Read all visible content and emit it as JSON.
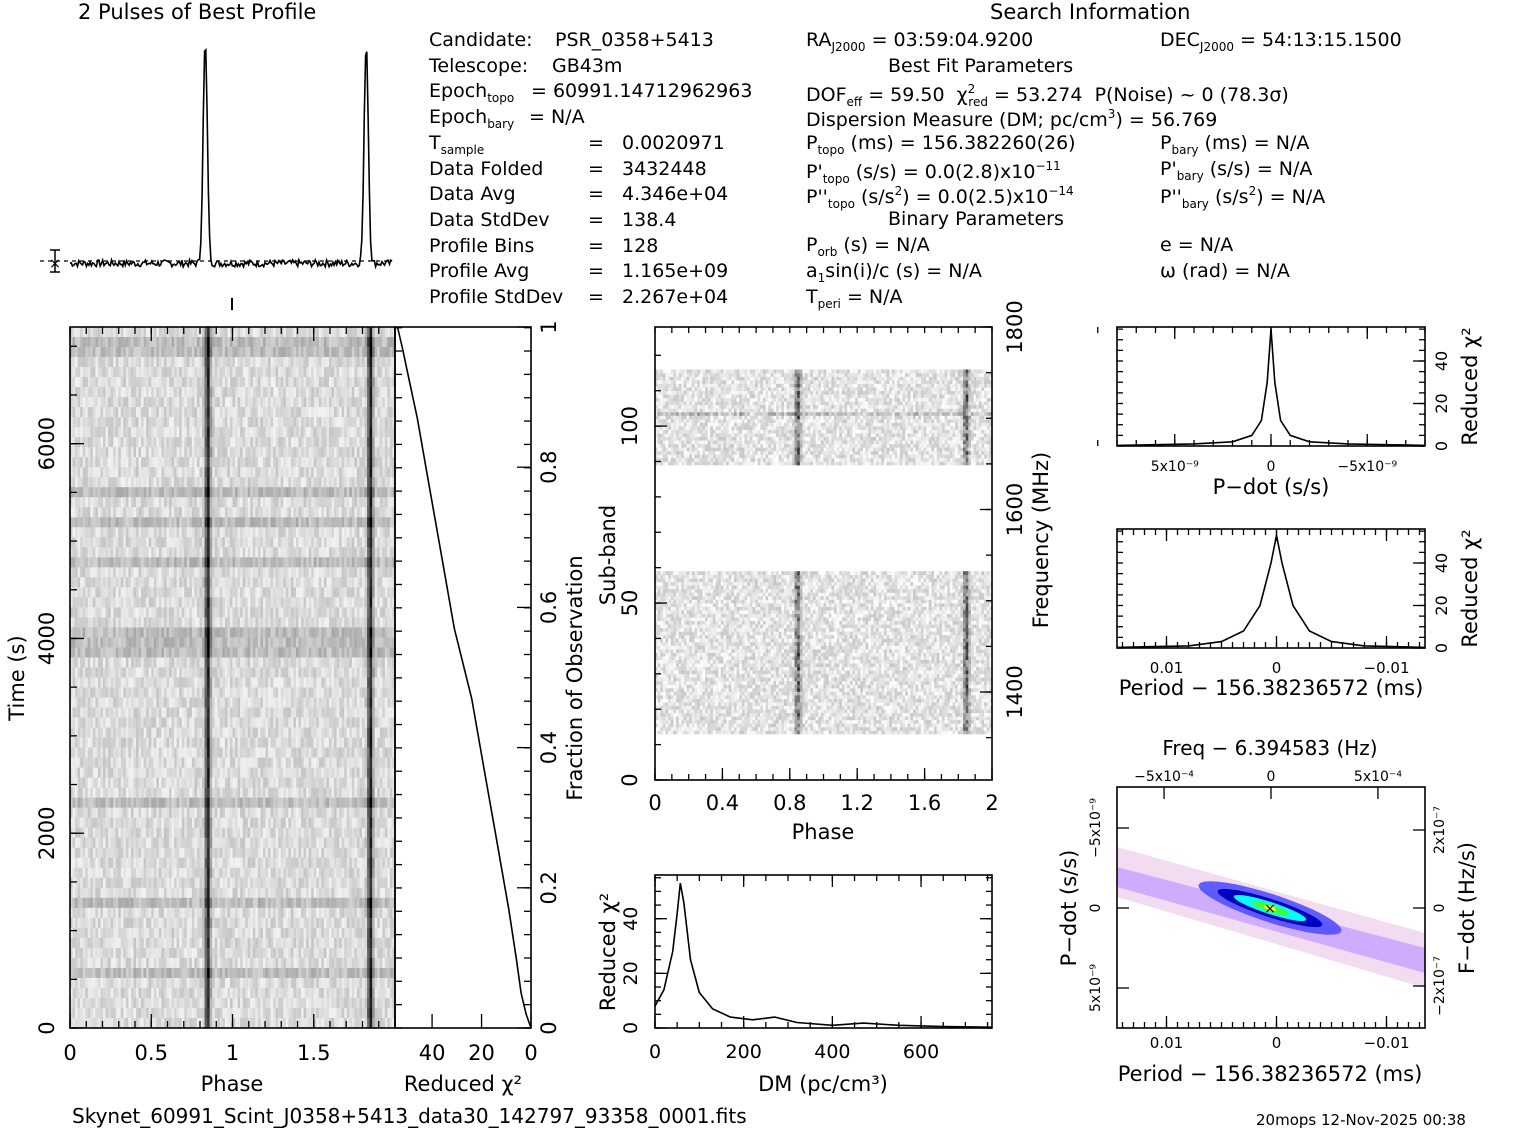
{
  "titles": {
    "profile": "2 Pulses of Best Profile",
    "search_info": "Search Information",
    "best_fit": "Best Fit Parameters",
    "binary": "Binary Parameters"
  },
  "info_left": [
    {
      "label": "Candidate:",
      "value": "PSR_0358+5413"
    },
    {
      "label": "Telescope:",
      "value": "GB43m"
    },
    {
      "label": "Epoch",
      "sub": "topo",
      "value": "= 60991.14712962963"
    },
    {
      "label": "Epoch",
      "sub": "bary",
      "value": "= N/A"
    },
    {
      "label": "T",
      "sub": "sample",
      "value": "=   0.0020971"
    },
    {
      "label": "Data Folded",
      "value": "=   3432448"
    },
    {
      "label": "Data Avg",
      "value": "=   4.346e+04"
    },
    {
      "label": "Data StdDev",
      "value": "=   138.4"
    },
    {
      "label": "Profile Bins",
      "value": "=   128"
    },
    {
      "label": "Profile Avg",
      "value": "=   1.165e+09"
    },
    {
      "label": "Profile StdDev",
      "value": "=   2.267e+04"
    }
  ],
  "info_search": {
    "ra": "RA",
    "ra_sub": "J2000",
    "ra_value": "= 03:59:04.9200",
    "dec": "DEC",
    "dec_sub": "J2000",
    "dec_value": "= 54:13:15.1500"
  },
  "info_fit": {
    "dof": "DOF",
    "dof_sub": "eff",
    "dof_value": "= 59.50",
    "chi": "χ",
    "chi_sub": "red",
    "chi_value": "= 53.274",
    "pnoise": "P(Noise) ~ 0   (78.3σ)",
    "dm_line": "Dispersion Measure (DM; pc/cm",
    "dm_value": ") = 56.769",
    "ptopo": "P",
    "ptopo_sub": "topo",
    "ptopo_value": "(ms) =  156.382260(26)",
    "pbary": "P",
    "pbary_sub": "bary",
    "pbary_value": "(ms) = N/A",
    "pdtopo": "P'",
    "pdtopo_value": "(s/s) = 0.0(2.8)x10",
    "pdtopo_exp": "−11",
    "pdbary": "P'",
    "pdbary_value": "(s/s) = N/A",
    "pddtopo": "P''",
    "pddtopo_value_a": "(s/s",
    "pddtopo_value_b": ") = 0.0(2.5)x10",
    "pddtopo_exp": "−14",
    "pddbary": "P''",
    "pddbary_value_a": "(s/s",
    "pddbary_value_b": ") = N/A"
  },
  "info_binary": {
    "porb": "P",
    "porb_sub": "orb",
    "porb_value": "(s) = N/A",
    "e": "e = N/A",
    "a1": "a",
    "a1_sub": "1",
    "a1_value": "sin(i)/c (s) = N/A",
    "omega": "ω (rad) = N/A",
    "tperi": "T",
    "tperi_sub": "peri",
    "tperi_value": "= N/A"
  },
  "footer": {
    "filename": "Skynet_60991_Scint_J0358+5413_data30_142797_93358_0001.fits",
    "stamp": "20mops 12-Nov-2025 00:38"
  },
  "chart_data": [
    {
      "id": "profile",
      "type": "line",
      "title": "2 Pulses of Best Profile",
      "x_range": [
        0,
        2
      ],
      "peaks_phase": [
        0.84,
        1.84
      ],
      "baseline": 0.05,
      "peak": 1.0,
      "note": "dashed line marks mean level; error bar at left"
    },
    {
      "id": "time-phase",
      "type": "heatmap",
      "xlabel": "Phase",
      "ylabel": "Time (s)",
      "x_ticks": [
        "0",
        "0.5",
        "1",
        "1.5"
      ],
      "y_ticks": [
        "0",
        "2000",
        "4000",
        "6000"
      ],
      "xlim": [
        0,
        2
      ],
      "ylim": [
        0,
        7198
      ],
      "pulse_phases": [
        0.84,
        1.84
      ]
    },
    {
      "id": "chi-vs-time",
      "type": "line",
      "xlabel": "Reduced χ²",
      "ylabel": "Fraction of Observation",
      "x_ticks": [
        "40",
        "20",
        "0"
      ],
      "y_ticks": [
        "0",
        "0.2",
        "0.4",
        "0.6",
        "0.8",
        "1"
      ],
      "xlim": [
        55,
        0
      ],
      "ylim": [
        0,
        1
      ],
      "points": [
        [
          0,
          0
        ],
        [
          2,
          0.02
        ],
        [
          4,
          0.05
        ],
        [
          6,
          0.1
        ],
        [
          9,
          0.17
        ],
        [
          14,
          0.27
        ],
        [
          19,
          0.37
        ],
        [
          24,
          0.47
        ],
        [
          31,
          0.57
        ],
        [
          36,
          0.67
        ],
        [
          41,
          0.77
        ],
        [
          46,
          0.87
        ],
        [
          49,
          0.92
        ],
        [
          52,
          0.97
        ],
        [
          54,
          1.0
        ]
      ]
    },
    {
      "id": "subband-phase",
      "type": "heatmap",
      "xlabel": "Phase",
      "ylabel": "Sub-band",
      "y2label": "Frequency (MHz)",
      "x_ticks": [
        "0",
        "0.4",
        "0.8",
        "1.2",
        "1.6",
        "2"
      ],
      "y_ticks": [
        "0",
        "50",
        "100"
      ],
      "y2_ticks": [
        "1400",
        "1600",
        "1800"
      ],
      "xlim": [
        0,
        2
      ],
      "ylim": [
        0,
        128
      ],
      "data_bands": [
        [
          13,
          59
        ],
        [
          89,
          116
        ]
      ],
      "pulse_phases": [
        0.84,
        1.84
      ]
    },
    {
      "id": "dm-chi",
      "type": "line",
      "xlabel": "DM (pc/cm³)",
      "ylabel": "Reduced χ²",
      "x_ticks": [
        "0",
        "200",
        "400",
        "600"
      ],
      "y_ticks": [
        "0",
        "20",
        "40"
      ],
      "xlim": [
        0,
        760
      ],
      "ylim": [
        0,
        56
      ],
      "points": [
        [
          0,
          8
        ],
        [
          20,
          14
        ],
        [
          40,
          28
        ],
        [
          50,
          42
        ],
        [
          57,
          53
        ],
        [
          65,
          46
        ],
        [
          80,
          25
        ],
        [
          100,
          13
        ],
        [
          130,
          7
        ],
        [
          170,
          4
        ],
        [
          220,
          3
        ],
        [
          270,
          4
        ],
        [
          320,
          2
        ],
        [
          400,
          1
        ],
        [
          470,
          1.8
        ],
        [
          550,
          1
        ],
        [
          650,
          0.5
        ],
        [
          760,
          0.3
        ]
      ]
    },
    {
      "id": "pdot-chi",
      "type": "line",
      "xlabel": "P−dot (s/s)",
      "ylabel": "Reduced χ²",
      "x_ticks": [
        "5x10⁻⁹",
        "0",
        "−5x10⁻⁹"
      ],
      "y_ticks": [
        "0",
        "20",
        "40"
      ],
      "xlim": [
        8e-09,
        -8e-09
      ],
      "ylim": [
        0,
        56
      ],
      "points": [
        [
          8e-09,
          0.3
        ],
        [
          4e-09,
          1
        ],
        [
          2e-09,
          2
        ],
        [
          1e-09,
          5
        ],
        [
          5e-10,
          12
        ],
        [
          2e-10,
          30
        ],
        [
          0,
          55
        ],
        [
          -2e-10,
          30
        ],
        [
          -5e-10,
          12
        ],
        [
          -1e-09,
          5
        ],
        [
          -2e-09,
          2
        ],
        [
          -4e-09,
          1
        ],
        [
          -8e-09,
          0.3
        ]
      ]
    },
    {
      "id": "period-chi",
      "type": "line",
      "xlabel": "Period − 156.38236572 (ms)",
      "ylabel": "Reduced χ²",
      "x_ticks": [
        "0.01",
        "0",
        "−0.01"
      ],
      "y_ticks": [
        "0",
        "20",
        "40"
      ],
      "xlim": [
        0.0145,
        -0.0135
      ],
      "ylim": [
        0,
        56
      ],
      "points": [
        [
          0.0145,
          0.3
        ],
        [
          0.008,
          1
        ],
        [
          0.005,
          3
        ],
        [
          0.003,
          8
        ],
        [
          0.0015,
          20
        ],
        [
          0.0005,
          40
        ],
        [
          0,
          53
        ],
        [
          -0.0005,
          40
        ],
        [
          -0.0015,
          20
        ],
        [
          -0.003,
          8
        ],
        [
          -0.005,
          3
        ],
        [
          -0.008,
          1
        ],
        [
          -0.0135,
          0.3
        ]
      ]
    },
    {
      "id": "period-pdot",
      "type": "heatmap",
      "title": "Freq − 6.394583 (Hz)",
      "xlabel": "Period − 156.38236572 (ms)",
      "ylabel": "P−dot (s/s)",
      "y2label": "F−dot (Hz/s)",
      "x_ticks": [
        "0.01",
        "0",
        "−0.01"
      ],
      "x2_ticks": [
        "−5x10⁻⁴",
        "0",
        "5x10⁻⁴"
      ],
      "y_ticks": [
        "−5x10⁻⁹",
        "0",
        "5x10⁻⁹"
      ],
      "y2_ticks": [
        "2x10⁻⁷",
        "0",
        "−2x10⁻⁷"
      ],
      "colors": [
        "#ffffff",
        "#f0d8f0",
        "#c8a0ff",
        "#5050ff",
        "#0000c0",
        "#00ffff",
        "#40ff40",
        "#ffff00"
      ]
    }
  ]
}
